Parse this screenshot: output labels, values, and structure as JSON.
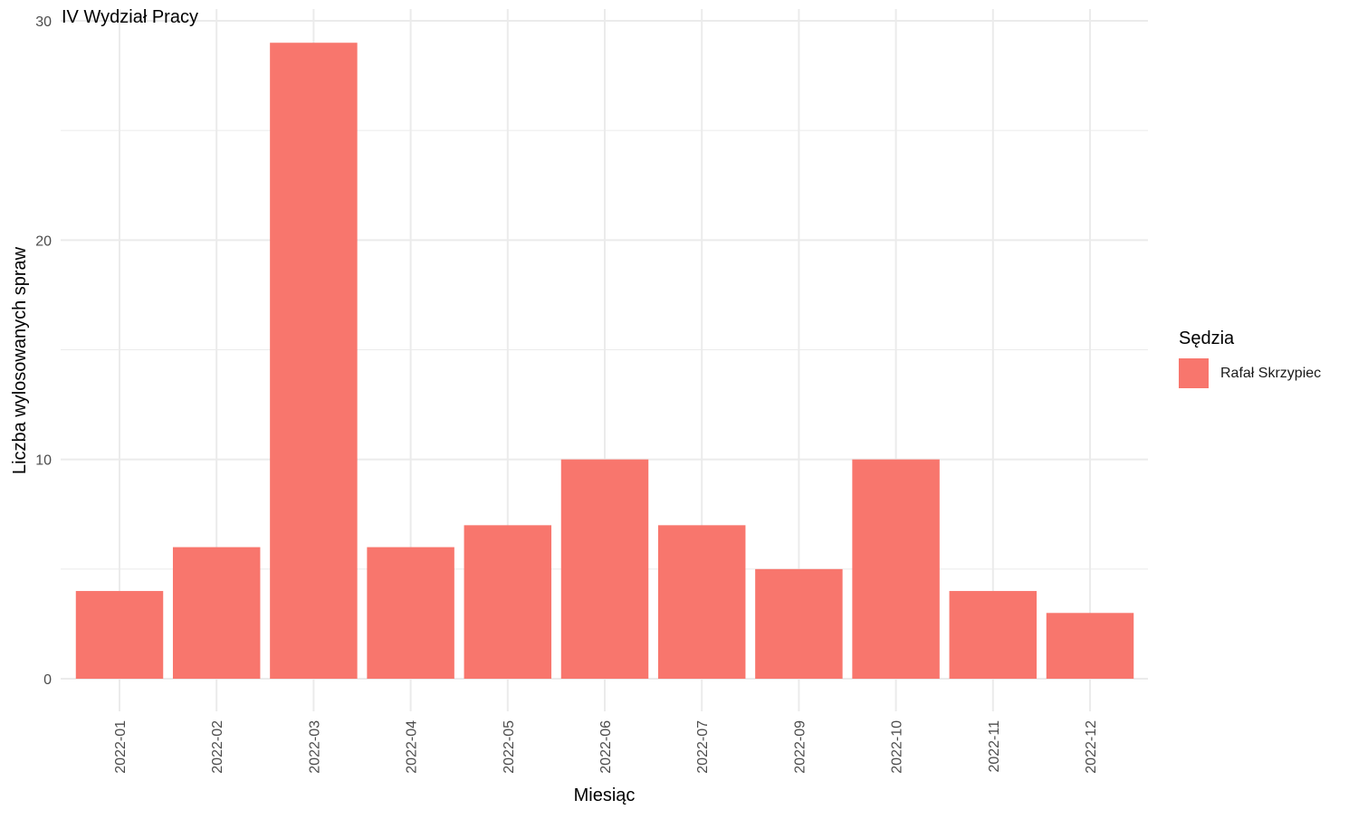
{
  "chart_data": {
    "type": "bar",
    "title": "IV Wydział Pracy",
    "xlabel": "Miesiąc",
    "ylabel": "Liczba wylosowanych spraw",
    "categories": [
      "2022-01",
      "2022-02",
      "2022-03",
      "2022-04",
      "2022-05",
      "2022-06",
      "2022-07",
      "2022-09",
      "2022-10",
      "2022-11",
      "2022-12"
    ],
    "series": [
      {
        "name": "Rafał Skrzypiec",
        "values": [
          4,
          6,
          29,
          6,
          7,
          10,
          7,
          5,
          10,
          4,
          3
        ]
      }
    ],
    "ylim": [
      0,
      30
    ],
    "yticks": [
      0,
      10,
      20,
      30
    ],
    "grid": true,
    "legend": {
      "title": "Sędzia",
      "position": "right"
    },
    "colors": {
      "bar": "#F8766D",
      "grid": "#EBEBEB",
      "tick_text": "#4D4D4D"
    }
  }
}
